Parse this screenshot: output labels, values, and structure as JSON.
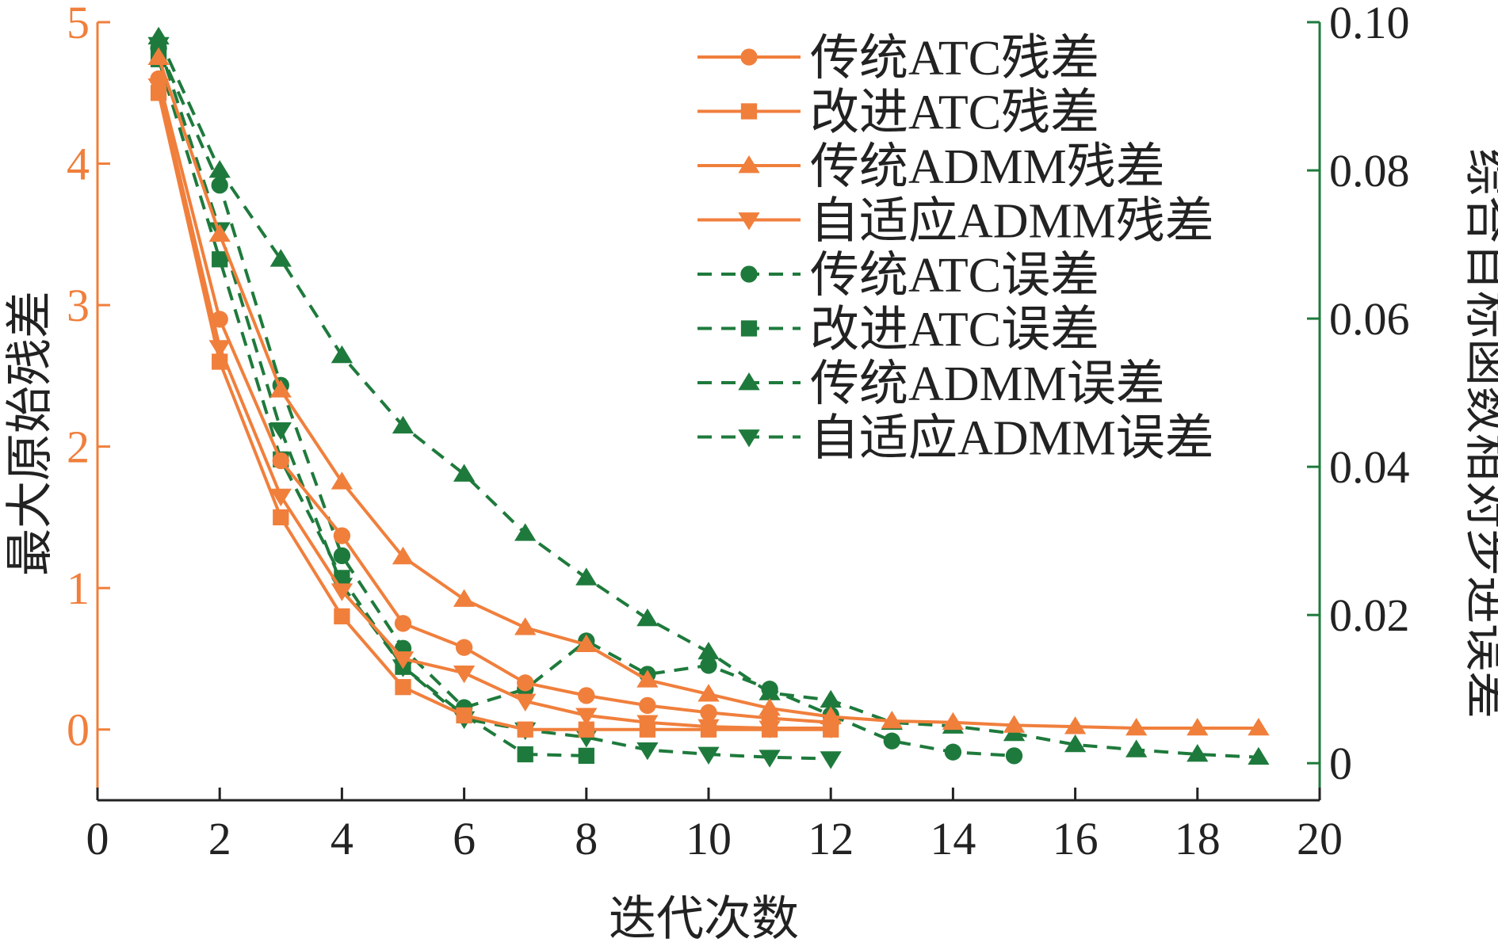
{
  "colors": {
    "left_axis": "#F07F3C",
    "right_axis": "#1E7A3C",
    "residual": "#F07F3C",
    "error": "#1E7A3C",
    "text": "#222222"
  },
  "chart_data": {
    "type": "line",
    "xlabel": "迭代次数",
    "ylabel_left": "最大原始残差",
    "ylabel_right": "综合目标函数相对步进误差",
    "xlim": [
      0,
      20
    ],
    "ylim_left": [
      -0.5,
      5
    ],
    "ylim_right": [
      -0.005,
      0.1
    ],
    "x_ticks": [
      "0",
      "2",
      "4",
      "6",
      "8",
      "10",
      "12",
      "14",
      "16",
      "18",
      "20"
    ],
    "y_ticks_left": [
      "0",
      "1",
      "2",
      "3",
      "4",
      "5"
    ],
    "y_ticks_right": [
      "0",
      "0.02",
      "0.04",
      "0.06",
      "0.08",
      "0.10"
    ],
    "grid": false,
    "legend_position": "top-right",
    "series": [
      {
        "name": "传统ATC残差",
        "axis": "left",
        "style": "solid",
        "marker": "circle",
        "x": [
          1,
          2,
          3,
          4,
          5,
          6,
          7,
          8,
          9,
          10,
          11,
          12
        ],
        "y": [
          4.6,
          2.9,
          1.9,
          1.37,
          0.75,
          0.58,
          0.33,
          0.24,
          0.17,
          0.12,
          0.08,
          0.05
        ]
      },
      {
        "name": "改进ATC残差",
        "axis": "left",
        "style": "solid",
        "marker": "square",
        "x": [
          1,
          2,
          3,
          4,
          5,
          6,
          7,
          8,
          9,
          10,
          11,
          12
        ],
        "y": [
          4.5,
          2.6,
          1.5,
          0.8,
          0.3,
          0.1,
          0.0,
          0.0,
          0.0,
          0.0,
          0.0,
          0.0
        ]
      },
      {
        "name": "传统ADMM残差",
        "axis": "left",
        "style": "solid",
        "marker": "triangle-up",
        "x": [
          1,
          2,
          3,
          4,
          5,
          6,
          7,
          8,
          9,
          10,
          11,
          12,
          13,
          14,
          15,
          16,
          17,
          18,
          19
        ],
        "y": [
          4.75,
          3.5,
          2.4,
          1.75,
          1.22,
          0.92,
          0.72,
          0.6,
          0.35,
          0.25,
          0.15,
          0.09,
          0.06,
          0.05,
          0.03,
          0.02,
          0.01,
          0.01,
          0.01
        ]
      },
      {
        "name": "自适应ADMM残差",
        "axis": "left",
        "style": "solid",
        "marker": "triangle-down",
        "x": [
          1,
          2,
          3,
          4,
          5,
          6,
          7,
          8,
          9,
          10,
          11,
          12
        ],
        "y": [
          4.55,
          2.7,
          1.65,
          0.98,
          0.5,
          0.4,
          0.2,
          0.1,
          0.05,
          0.02,
          0.01,
          0.01
        ]
      },
      {
        "name": "传统ATC误差",
        "axis": "right",
        "style": "dashed",
        "marker": "circle",
        "x": [
          1,
          2,
          3,
          4,
          5,
          6,
          7,
          8,
          9,
          10,
          11,
          12,
          13,
          14,
          15
        ],
        "y": [
          0.0965,
          0.078,
          0.051,
          0.028,
          0.0155,
          0.0075,
          0.01,
          0.0165,
          0.012,
          0.0132,
          0.01,
          0.0065,
          0.003,
          0.0015,
          0.001
        ]
      },
      {
        "name": "改进ATC误差",
        "axis": "right",
        "style": "dashed",
        "marker": "square",
        "x": [
          1,
          2,
          3,
          4,
          5,
          6,
          7,
          8
        ],
        "y": [
          0.095,
          0.068,
          0.041,
          0.025,
          0.013,
          0.0065,
          0.0012,
          0.001
        ]
      },
      {
        "name": "传统ADMM误差",
        "axis": "right",
        "style": "dashed",
        "marker": "triangle-up",
        "x": [
          1,
          2,
          3,
          4,
          5,
          6,
          7,
          8,
          9,
          10,
          11,
          12,
          13,
          14,
          15,
          16,
          17,
          18,
          19
        ],
        "y": [
          0.098,
          0.08,
          0.068,
          0.055,
          0.0455,
          0.039,
          0.031,
          0.025,
          0.0195,
          0.015,
          0.0095,
          0.0085,
          0.0055,
          0.005,
          0.004,
          0.0025,
          0.0018,
          0.0012,
          0.0008
        ]
      },
      {
        "name": "自适应ADMM误差",
        "axis": "right",
        "style": "dashed",
        "marker": "triangle-down",
        "x": [
          1,
          2,
          3,
          4,
          5,
          6,
          7,
          8,
          9,
          10,
          11,
          12
        ],
        "y": [
          0.097,
          0.072,
          0.045,
          0.024,
          0.013,
          0.006,
          0.0045,
          0.0035,
          0.0018,
          0.0012,
          0.0008,
          0.0006
        ]
      }
    ]
  }
}
